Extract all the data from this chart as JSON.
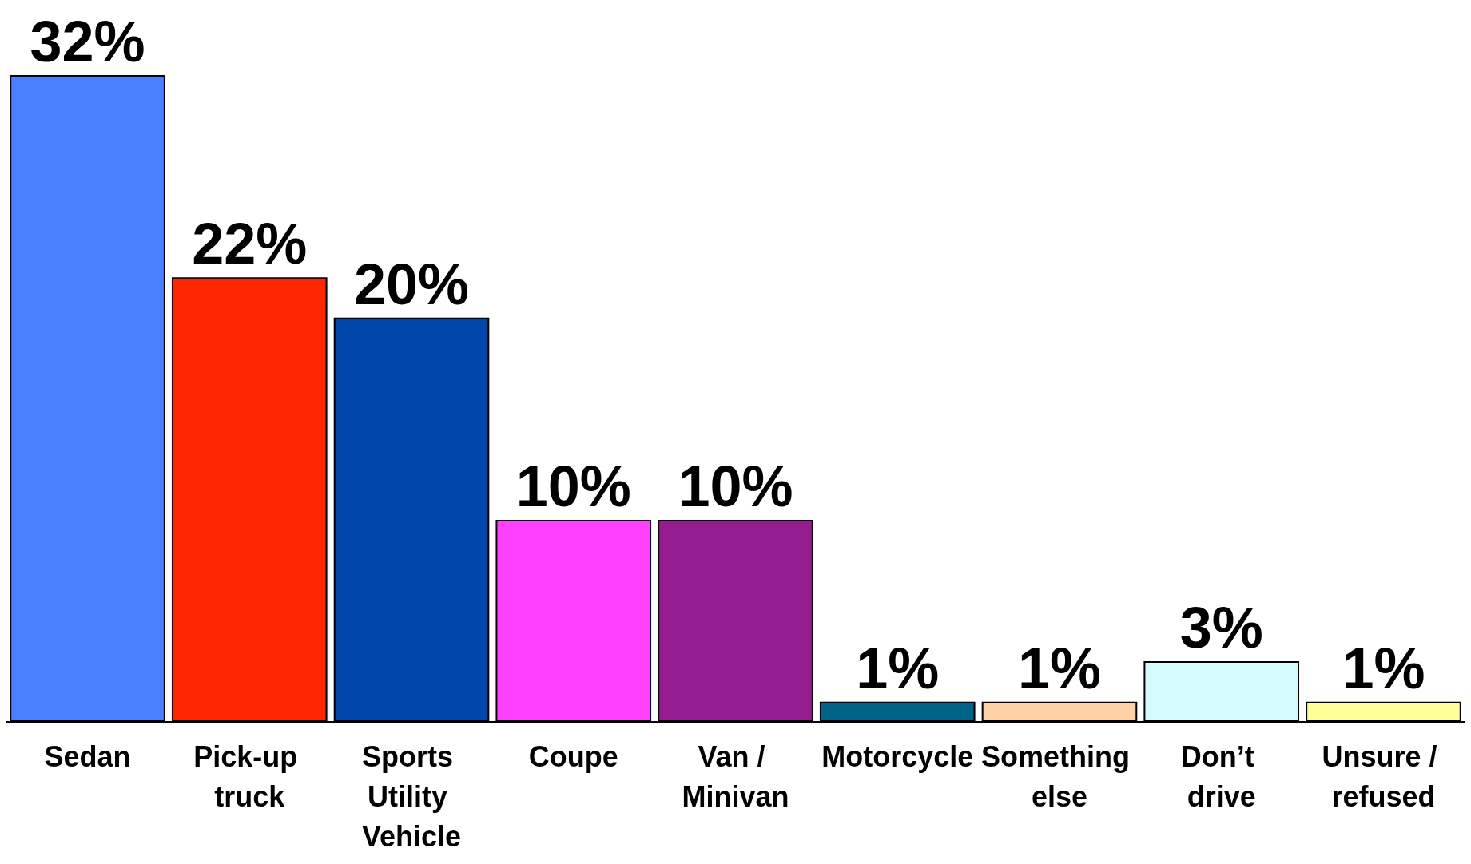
{
  "chart_data": {
    "type": "bar",
    "categories": [
      "Sedan",
      "Pick-up truck",
      "Sports Utility Vehicle",
      "Coupe",
      "Van / Minivan",
      "Motorcycle",
      "Something else",
      "Don’t drive",
      "Unsure / refused"
    ],
    "values": [
      32,
      22,
      20,
      10,
      10,
      1,
      1,
      3,
      1
    ],
    "value_labels": [
      "32%",
      "22%",
      "20%",
      "10%",
      "10%",
      "1%",
      "1%",
      "3%",
      "1%"
    ],
    "colors": [
      "#4a7fff",
      "#ff2600",
      "#0047ab",
      "#ff40ff",
      "#941e8f",
      "#006388",
      "#ffd1a4",
      "#d4fcff",
      "#ffff99"
    ]
  }
}
